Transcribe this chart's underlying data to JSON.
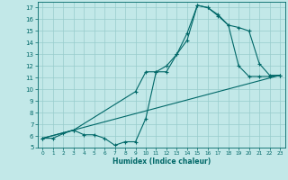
{
  "xlabel": "Humidex (Indice chaleur)",
  "bg_color": "#c2e8e8",
  "grid_color": "#98cccc",
  "line_color": "#006868",
  "xlim": [
    -0.5,
    23.5
  ],
  "ylim": [
    5,
    17.5
  ],
  "xticks": [
    0,
    1,
    2,
    3,
    4,
    5,
    6,
    7,
    8,
    9,
    10,
    11,
    12,
    13,
    14,
    15,
    16,
    17,
    18,
    19,
    20,
    21,
    22,
    23
  ],
  "yticks": [
    5,
    6,
    7,
    8,
    9,
    10,
    11,
    12,
    13,
    14,
    15,
    16,
    17
  ],
  "line1_x": [
    0,
    1,
    2,
    3,
    4,
    5,
    6,
    7,
    8,
    9,
    10,
    11,
    12,
    13,
    14,
    15,
    16,
    17,
    18,
    19,
    20,
    21,
    22,
    23
  ],
  "line1_y": [
    5.8,
    5.8,
    6.2,
    6.5,
    6.1,
    6.1,
    5.8,
    5.2,
    5.5,
    5.5,
    7.5,
    11.5,
    11.5,
    13.0,
    14.2,
    17.2,
    17.0,
    16.4,
    15.5,
    12.0,
    11.1,
    11.1,
    11.1,
    11.2
  ],
  "line2_x": [
    0,
    3,
    9,
    10,
    11,
    12,
    13,
    14,
    15,
    16,
    17,
    18,
    19,
    20,
    21,
    22,
    23
  ],
  "line2_y": [
    5.8,
    6.5,
    9.8,
    11.5,
    11.5,
    12.0,
    13.0,
    14.8,
    17.2,
    17.0,
    16.3,
    15.5,
    15.3,
    15.0,
    12.2,
    11.2,
    11.2
  ],
  "line3_x": [
    0,
    23
  ],
  "line3_y": [
    5.8,
    11.2
  ]
}
